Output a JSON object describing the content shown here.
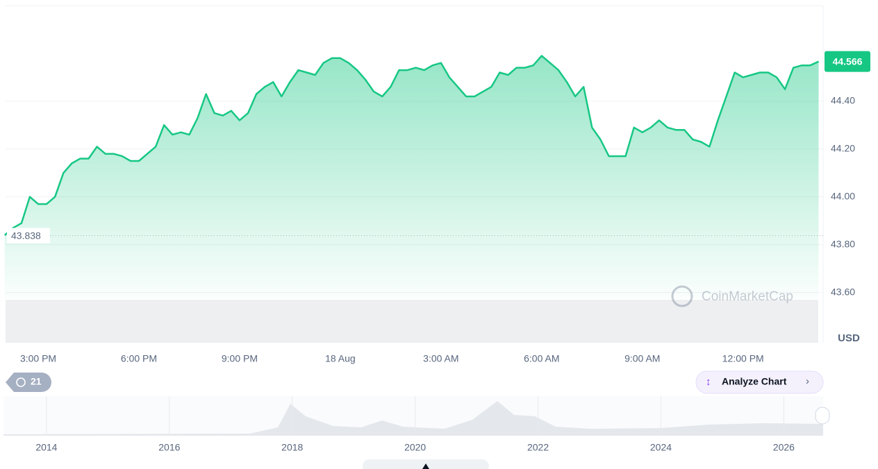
{
  "chart_data": {
    "type": "line",
    "color": "#16c784",
    "categories": [
      null,
      null,
      null,
      null,
      "3:00 PM",
      null,
      null,
      null,
      null,
      null,
      null,
      null,
      null,
      null,
      null,
      null,
      "6:00 PM",
      null,
      null,
      null,
      null,
      null,
      null,
      null,
      null,
      null,
      null,
      null,
      "9:00 PM",
      null,
      null,
      null,
      null,
      null,
      null,
      null,
      null,
      null,
      null,
      null,
      "18 Aug",
      null,
      null,
      null,
      null,
      null,
      null,
      null,
      null,
      null,
      null,
      null,
      "3:00 AM",
      null,
      null,
      null,
      null,
      null,
      null,
      null,
      null,
      null,
      null,
      null,
      "6:00 AM",
      null,
      null,
      null,
      null,
      null,
      null,
      null,
      null,
      null,
      null,
      null,
      "9:00 AM",
      null,
      null,
      null,
      null,
      null,
      null,
      null,
      null,
      null,
      null,
      null,
      "12:00 PM",
      null,
      null,
      null,
      null,
      null,
      null,
      null,
      null,
      null
    ],
    "values": [
      43.84,
      43.87,
      43.89,
      44.0,
      43.97,
      43.97,
      44.0,
      44.1,
      44.14,
      44.16,
      44.16,
      44.21,
      44.18,
      44.18,
      44.17,
      44.15,
      44.15,
      44.18,
      44.21,
      44.3,
      44.26,
      44.27,
      44.26,
      44.33,
      44.43,
      44.35,
      44.34,
      44.36,
      44.32,
      44.35,
      44.43,
      44.46,
      44.48,
      44.42,
      44.48,
      44.53,
      44.52,
      44.51,
      44.56,
      44.58,
      44.58,
      44.56,
      44.53,
      44.49,
      44.44,
      44.42,
      44.46,
      44.53,
      44.53,
      44.54,
      44.53,
      44.55,
      44.56,
      44.5,
      44.46,
      44.42,
      44.42,
      44.44,
      44.46,
      44.52,
      44.51,
      44.54,
      44.54,
      44.55,
      44.59,
      44.56,
      44.53,
      44.48,
      44.42,
      44.46,
      44.29,
      44.24,
      44.17,
      44.17,
      44.17,
      44.29,
      44.27,
      44.29,
      44.32,
      44.29,
      44.28,
      44.28,
      44.24,
      44.23,
      44.21,
      44.32,
      44.42,
      44.52,
      44.5,
      44.51,
      44.52,
      44.52,
      44.5,
      44.45,
      44.54,
      44.55,
      44.55,
      44.566
    ],
    "ylim": [
      43.39,
      44.8
    ],
    "yticks": [
      {
        "value": 43.6,
        "label": "43.60"
      },
      {
        "value": 43.8,
        "label": "43.80"
      },
      {
        "value": 44.0,
        "label": "44.00"
      },
      {
        "value": 44.2,
        "label": "44.20"
      },
      {
        "value": 44.4,
        "label": "44.40"
      }
    ],
    "grid": true,
    "y_unit": "USD",
    "current_price": 44.566,
    "reference_price": 43.838
  },
  "navigator": {
    "xlim": [
      2013.3,
      2026.64
    ],
    "xticks": [
      2014,
      2016,
      2018,
      2020,
      2022,
      2024,
      2026
    ]
  },
  "ui": {
    "watermark": "CoinMarketCap",
    "history_count": "21",
    "analyze_button": "Analyze Chart"
  }
}
